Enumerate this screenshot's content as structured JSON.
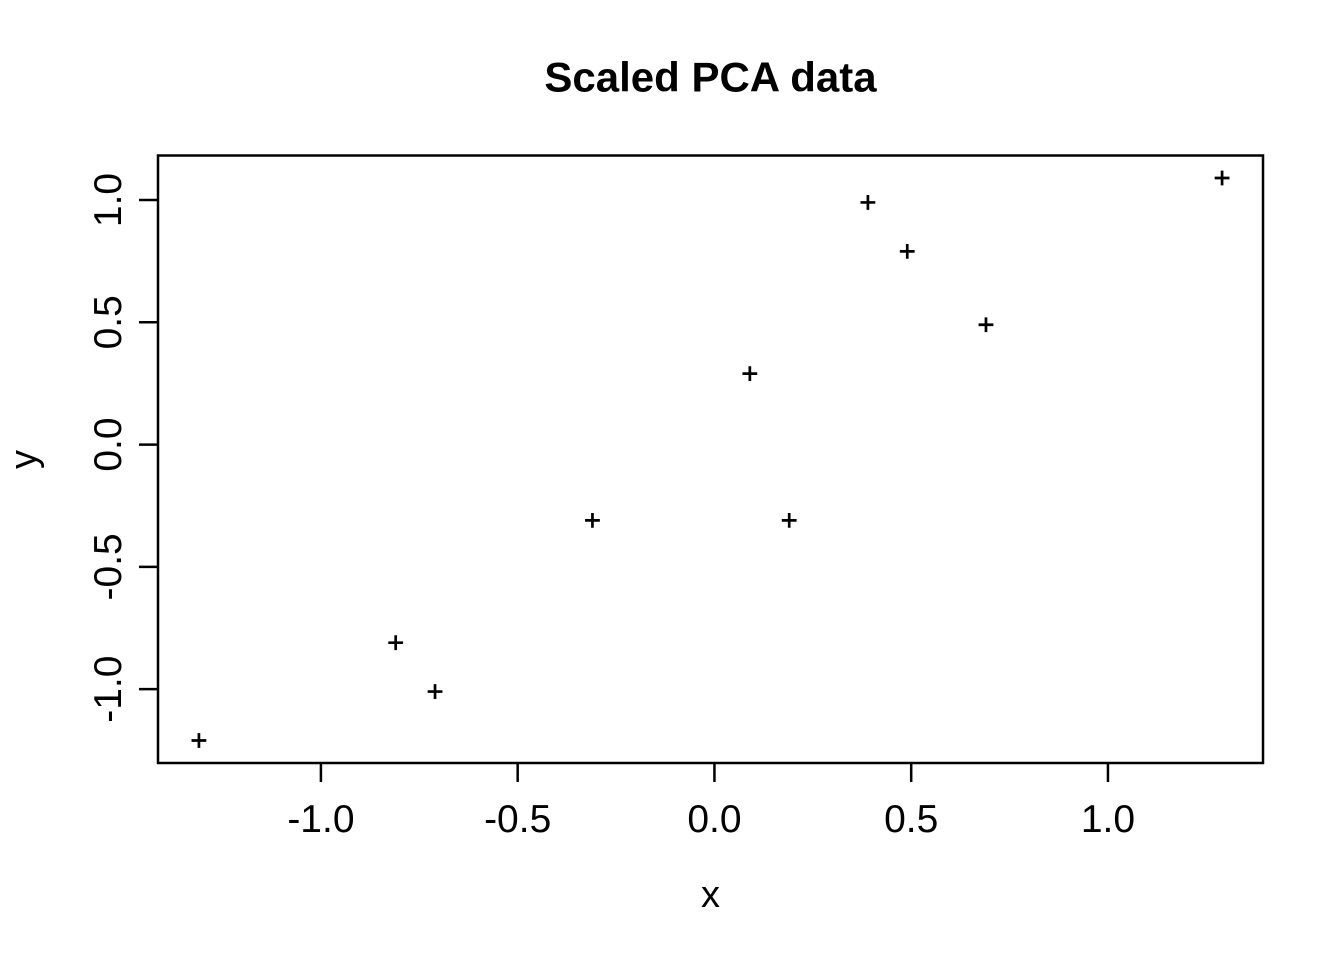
{
  "page": {
    "background_color": "#ffffff",
    "foreground_color": "#000000"
  },
  "chart_data": {
    "type": "scatter",
    "title": "Scaled PCA data",
    "xlabel": "x",
    "ylabel": "y",
    "marker": "plus",
    "marker_color": "#000000",
    "grid": false,
    "legend": "none",
    "xlim": [
      -1.414,
      1.394
    ],
    "ylim": [
      -1.302,
      1.182
    ],
    "x_ticks": [
      -1.0,
      -0.5,
      0.0,
      0.5,
      1.0
    ],
    "x_tick_labels": [
      "-1.0",
      "-0.5",
      "0.0",
      "0.5",
      "1.0"
    ],
    "y_ticks": [
      -1.0,
      -0.5,
      0.0,
      0.5,
      1.0
    ],
    "y_tick_labels": [
      "-1.0",
      "-0.5",
      "0.0",
      "0.5",
      "1.0"
    ],
    "points": [
      {
        "x": 0.69,
        "y": 0.49
      },
      {
        "x": -1.31,
        "y": -1.21
      },
      {
        "x": 0.39,
        "y": 0.99
      },
      {
        "x": 0.09,
        "y": 0.29
      },
      {
        "x": 1.29,
        "y": 1.09
      },
      {
        "x": 0.49,
        "y": 0.79
      },
      {
        "x": 0.19,
        "y": -0.31
      },
      {
        "x": -0.81,
        "y": -0.81
      },
      {
        "x": -0.31,
        "y": -0.31
      },
      {
        "x": -0.71,
        "y": -1.01
      }
    ]
  }
}
